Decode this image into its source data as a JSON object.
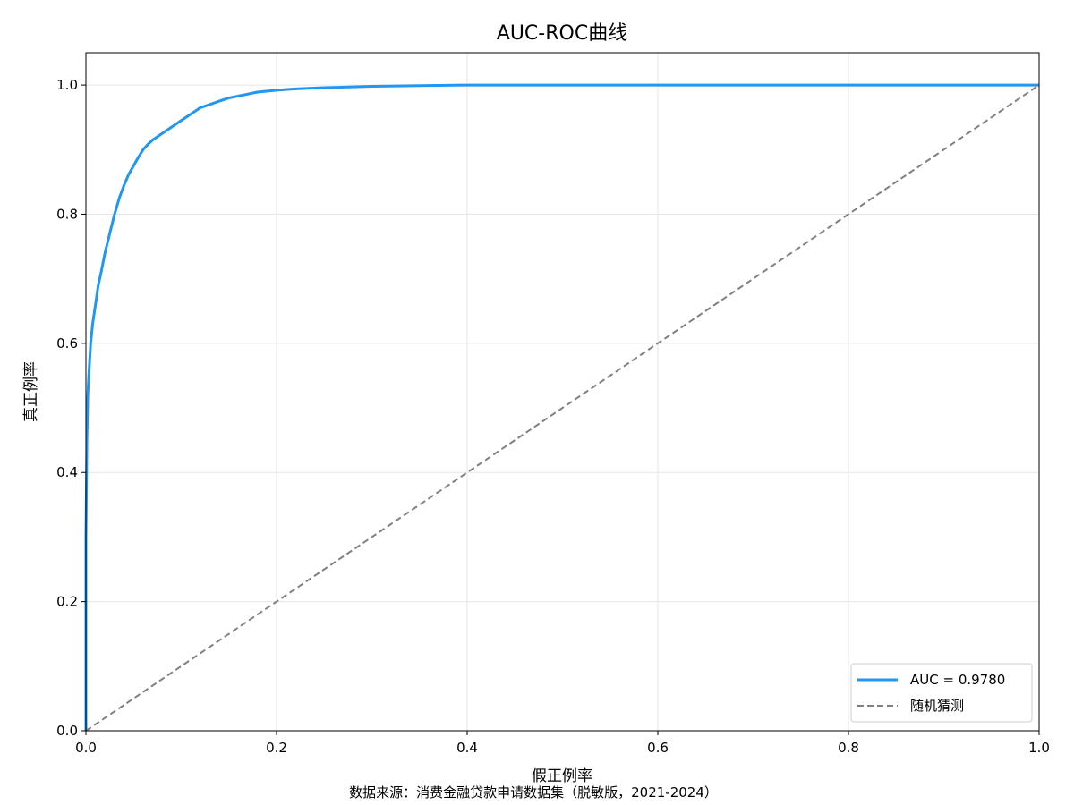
{
  "chart_data": {
    "type": "line",
    "title": "AUC-ROC曲线",
    "xlabel": "假正例率",
    "ylabel": "真正例率",
    "xlim": [
      0.0,
      1.0
    ],
    "ylim": [
      0.0,
      1.05
    ],
    "x_ticks": [
      0.0,
      0.2,
      0.4,
      0.6,
      0.8,
      1.0
    ],
    "x_tick_labels": [
      "0.0",
      "0.2",
      "0.4",
      "0.6",
      "0.8",
      "1.0"
    ],
    "y_ticks": [
      0.0,
      0.2,
      0.4,
      0.6,
      0.8,
      1.0
    ],
    "y_tick_labels": [
      "0.0",
      "0.2",
      "0.4",
      "0.6",
      "0.8",
      "1.0"
    ],
    "grid": true,
    "legend_position": "lower-right",
    "series": [
      {
        "name": "AUC = 0.9780",
        "color": "#2196F3",
        "line_style": "solid",
        "x": [
          0.0,
          0.0,
          0.001,
          0.002,
          0.003,
          0.005,
          0.007,
          0.01,
          0.013,
          0.016,
          0.02,
          0.025,
          0.03,
          0.035,
          0.04,
          0.045,
          0.05,
          0.055,
          0.06,
          0.065,
          0.07,
          0.075,
          0.08,
          0.09,
          0.1,
          0.11,
          0.12,
          0.13,
          0.14,
          0.15,
          0.16,
          0.17,
          0.18,
          0.2,
          0.22,
          0.25,
          0.3,
          0.35,
          0.4,
          0.5,
          0.6,
          0.7,
          0.8,
          0.9,
          1.0
        ],
        "y": [
          0.0,
          0.3,
          0.45,
          0.52,
          0.55,
          0.6,
          0.63,
          0.66,
          0.69,
          0.71,
          0.74,
          0.77,
          0.8,
          0.825,
          0.845,
          0.862,
          0.875,
          0.888,
          0.9,
          0.908,
          0.915,
          0.92,
          0.925,
          0.935,
          0.945,
          0.955,
          0.965,
          0.97,
          0.975,
          0.98,
          0.983,
          0.986,
          0.989,
          0.992,
          0.994,
          0.996,
          0.998,
          0.999,
          1.0,
          1.0,
          1.0,
          1.0,
          1.0,
          1.0,
          1.0
        ]
      },
      {
        "name": "随机猜测",
        "color": "#808080",
        "line_style": "dashed",
        "x": [
          0.0,
          1.0
        ],
        "y": [
          0.0,
          1.0
        ]
      }
    ]
  },
  "source_note": "数据来源：消费金融贷款申请数据集（脱敏版，2021-2024）"
}
